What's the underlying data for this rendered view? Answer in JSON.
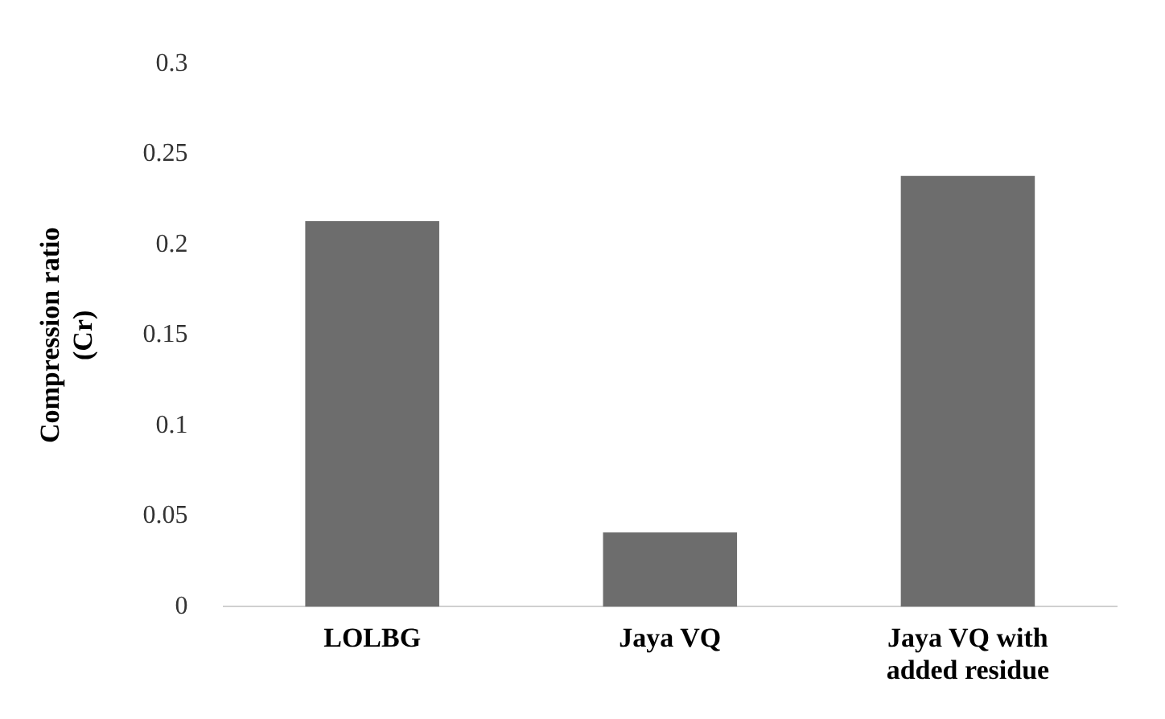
{
  "chart_data": {
    "type": "bar",
    "ylabel": "Compression ratio (Cr)",
    "categories": [
      "LOLBG",
      "Jaya VQ",
      "Jaya VQ with added residue"
    ],
    "values": [
      0.213,
      0.041,
      0.238
    ],
    "color": "#6d6d6d",
    "ylim": [
      0,
      0.3
    ],
    "yticks": [
      0,
      0.05,
      0.1,
      0.15,
      0.2,
      0.25,
      0.3
    ],
    "grid": false,
    "legend": false
  }
}
